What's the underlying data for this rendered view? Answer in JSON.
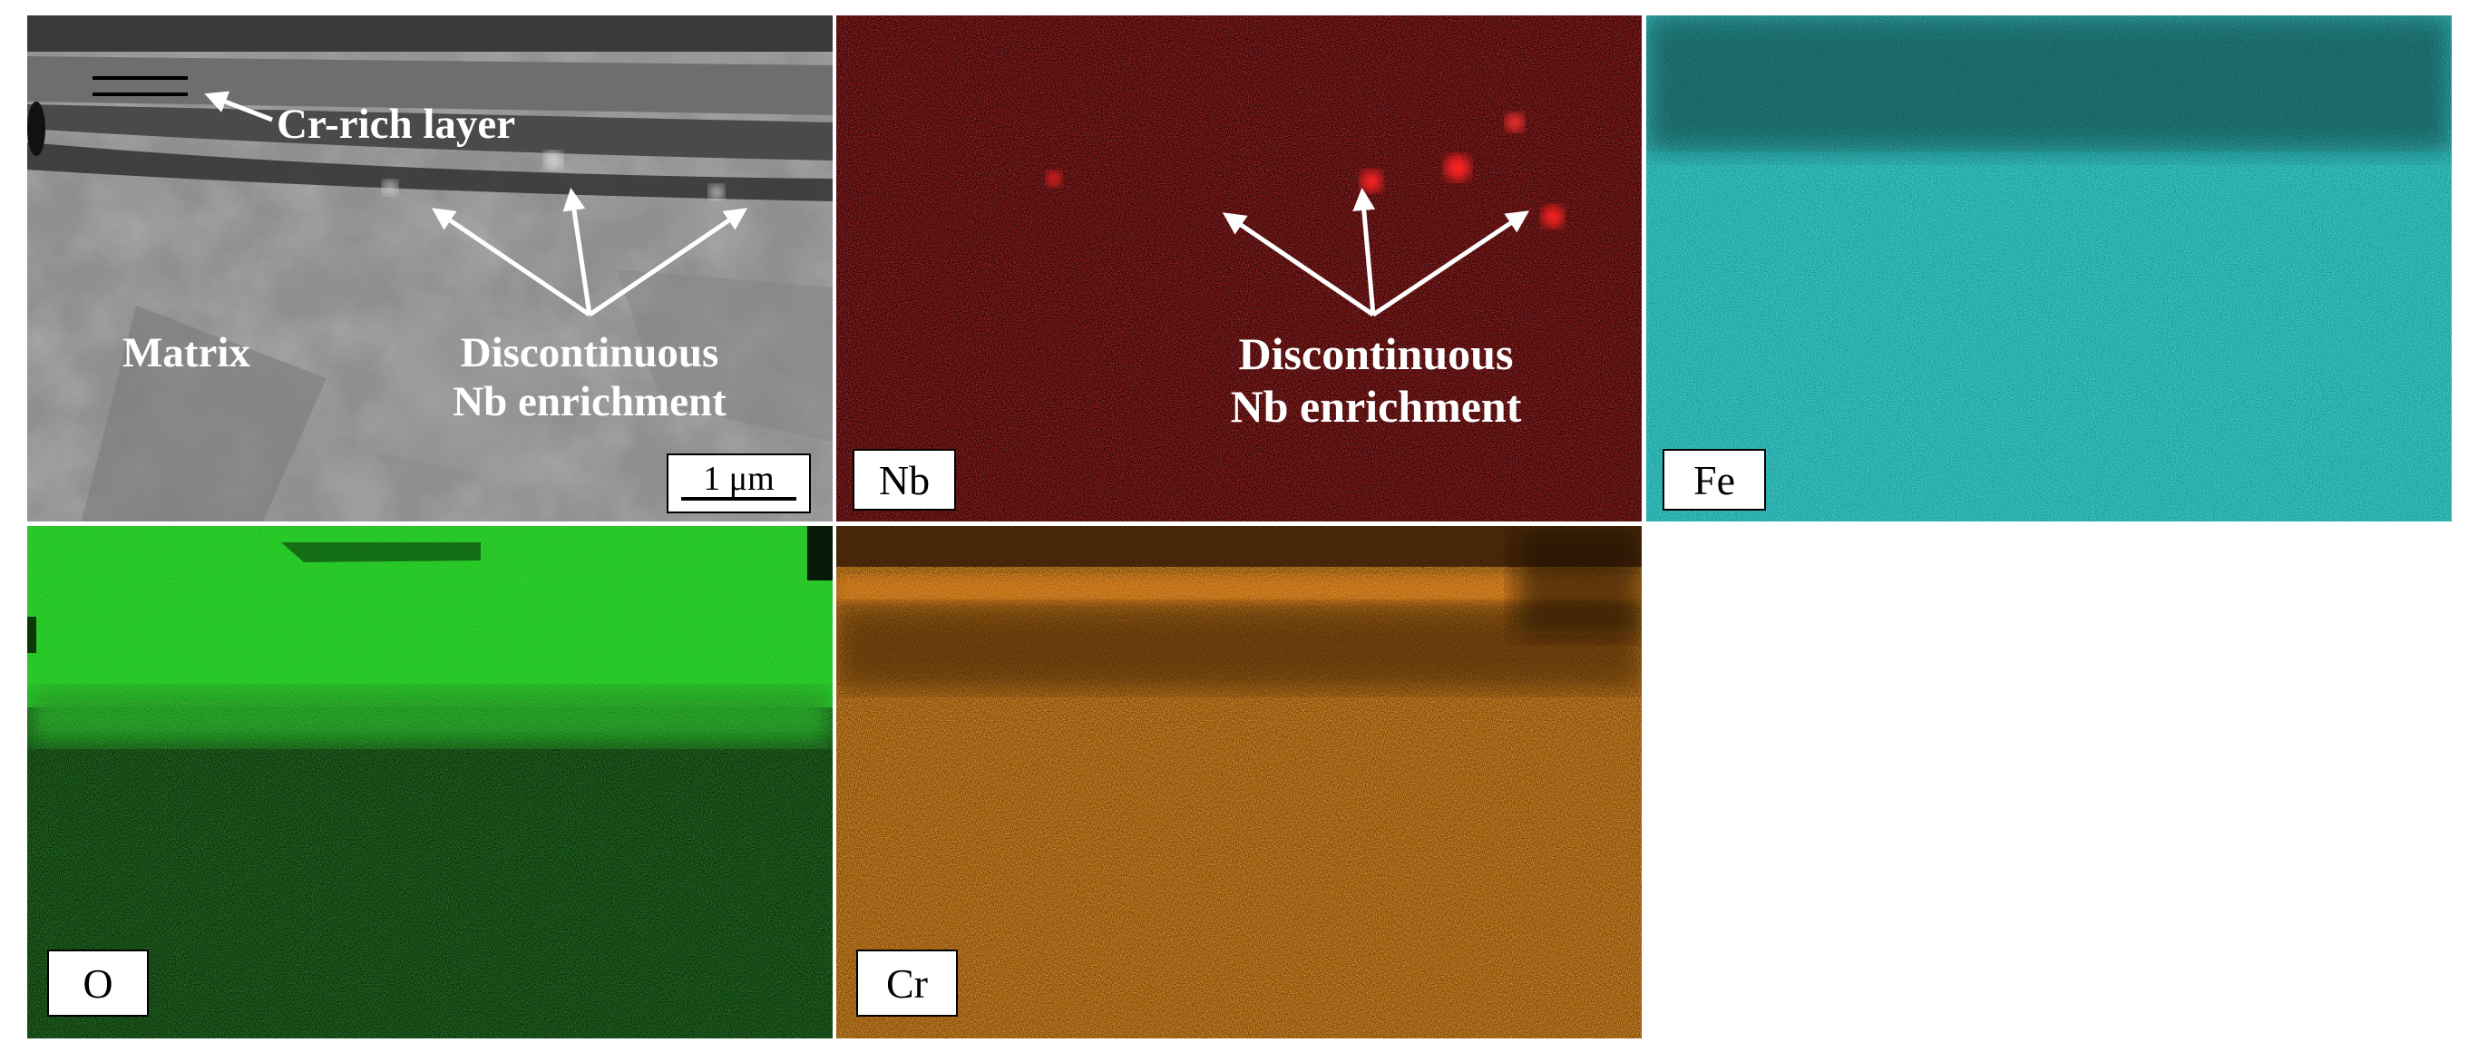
{
  "sem": {
    "cr_layer_label": "Cr-rich layer",
    "matrix_label": "Matrix",
    "nb_label_line1": "Discontinuous",
    "nb_label_line2": "Nb enrichment",
    "scale_bar": "1 μm"
  },
  "nb_map": {
    "element": "Nb",
    "color": "#e01010",
    "label_line1": "Discontinuous",
    "label_line2": "Nb enrichment"
  },
  "fe_map": {
    "element": "Fe",
    "color": "#33cccc"
  },
  "o_map": {
    "element": "O",
    "color": "#22e022"
  },
  "cr_map": {
    "element": "Cr",
    "color": "#e07a12"
  }
}
